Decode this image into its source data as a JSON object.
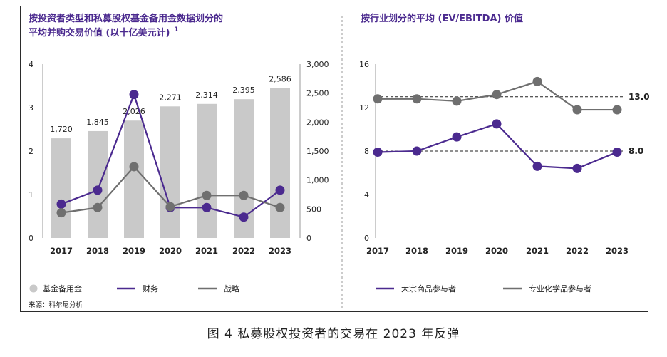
{
  "caption": "图 4 私募股权投资者的交易在 2023 年反弹",
  "source": "来源：科尔尼分析",
  "colors": {
    "title": "#4b2a8f",
    "bars": "#c9c9c9",
    "purple": "#4b2a8f",
    "gray": "#6f6f6f"
  },
  "chart_data": [
    {
      "type": "bar",
      "title_line1": "按投资者类型和私募股权基金备用金数据划分的",
      "title_line2": "平均并购交易价值 (以十亿美元计)",
      "title_sup": "1",
      "categories": [
        "2017",
        "2018",
        "2019",
        "2020",
        "2021",
        "2022",
        "2023"
      ],
      "y_left": {
        "ticks": [
          "0",
          "1",
          "2",
          "3",
          "4"
        ],
        "range": [
          0,
          4
        ]
      },
      "y_right": {
        "ticks": [
          "0",
          "500",
          "1,000",
          "1,500",
          "2,000",
          "2,500",
          "3,000"
        ],
        "range": [
          0,
          3000
        ]
      },
      "bars": {
        "name": "基金备用金",
        "axis": "right",
        "values": [
          1720,
          1845,
          2026,
          2271,
          2314,
          2395,
          2586
        ],
        "labels": [
          "1,720",
          "1,845",
          "2,026",
          "2,271",
          "2,314",
          "2,395",
          "2,586"
        ]
      },
      "series": [
        {
          "name": "财务",
          "axis": "left",
          "color": "#4b2a8f",
          "values": [
            0.78,
            1.1,
            3.3,
            0.7,
            0.7,
            0.48,
            1.1
          ]
        },
        {
          "name": "战略",
          "axis": "left",
          "color": "#6f6f6f",
          "values": [
            0.58,
            0.7,
            1.64,
            0.72,
            0.98,
            0.98,
            0.7
          ]
        }
      ],
      "grid": false,
      "legend": "bottom"
    },
    {
      "type": "line",
      "title": "按行业划分的平均 (EV/EBITDA) 价值",
      "categories": [
        "2017",
        "2018",
        "2019",
        "2020",
        "2021",
        "2022",
        "2023"
      ],
      "y_axis": {
        "ticks": [
          "0",
          "4",
          "8",
          "12",
          "16"
        ],
        "range": [
          0,
          16
        ]
      },
      "series": [
        {
          "name": "大宗商品参与者",
          "color": "#4b2a8f",
          "values": [
            7.9,
            8.0,
            9.3,
            10.5,
            6.6,
            6.4,
            7.9
          ]
        },
        {
          "name": "专业化学品参与者",
          "color": "#6f6f6f",
          "values": [
            12.8,
            12.8,
            12.6,
            13.2,
            14.4,
            11.8,
            11.8
          ]
        }
      ],
      "reference_lines": [
        {
          "value": 13.0,
          "label": "13.0"
        },
        {
          "value": 8.0,
          "label": "8.0"
        }
      ],
      "grid": false,
      "legend": "bottom"
    }
  ]
}
